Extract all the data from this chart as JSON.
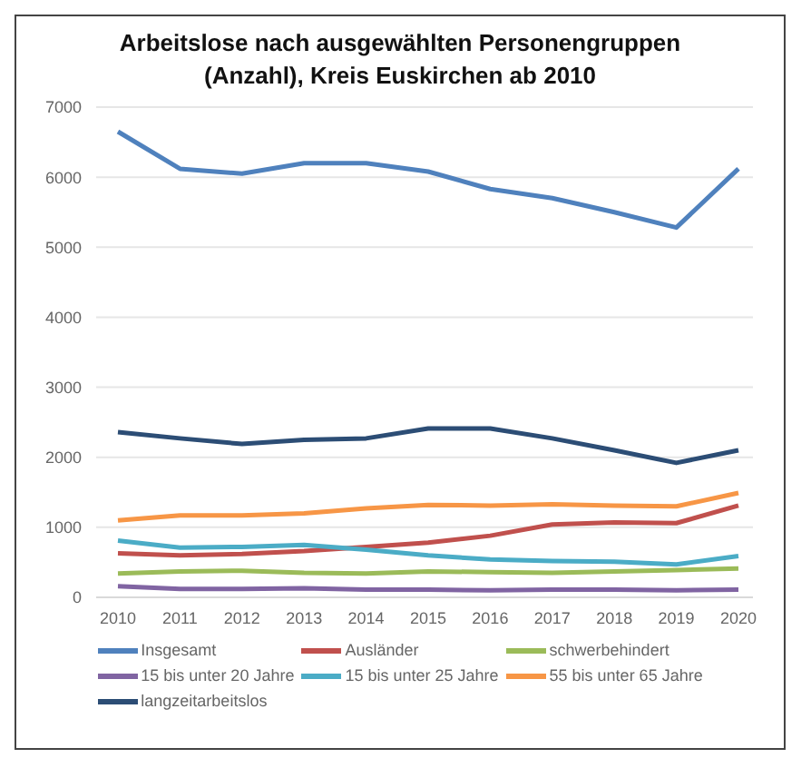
{
  "chart_data": {
    "type": "line",
    "title": "Arbeitslose nach ausgewählten Personengruppen (Anzahl), Kreis Euskirchen ab 2010",
    "categories": [
      "2010",
      "2011",
      "2012",
      "2013",
      "2014",
      "2015",
      "2016",
      "2017",
      "2018",
      "2019",
      "2020"
    ],
    "series": [
      {
        "name": "Insgesamt",
        "color": "#4f81bd",
        "values": [
          6650,
          6120,
          6050,
          6200,
          6200,
          6080,
          5830,
          5700,
          5500,
          5280,
          6120
        ]
      },
      {
        "name": "Ausländer",
        "color": "#c0504d",
        "values": [
          630,
          600,
          620,
          660,
          720,
          780,
          880,
          1040,
          1070,
          1060,
          1310
        ]
      },
      {
        "name": "schwerbehindert",
        "color": "#9bbb59",
        "values": [
          340,
          370,
          380,
          350,
          340,
          370,
          360,
          350,
          370,
          390,
          410
        ]
      },
      {
        "name": "15 bis unter 20 Jahre",
        "color": "#8064a2",
        "values": [
          160,
          120,
          120,
          130,
          110,
          110,
          100,
          110,
          110,
          100,
          110
        ]
      },
      {
        "name": "15 bis unter 25 Jahre",
        "color": "#4bacc6",
        "values": [
          810,
          710,
          720,
          750,
          680,
          600,
          540,
          520,
          510,
          470,
          590
        ]
      },
      {
        "name": "55 bis unter 65 Jahre",
        "color": "#f79646",
        "values": [
          1100,
          1170,
          1170,
          1200,
          1270,
          1320,
          1310,
          1330,
          1310,
          1300,
          1490
        ]
      },
      {
        "name": "langzeitarbeitslos",
        "color": "#2c4d75",
        "values": [
          2360,
          2270,
          2190,
          2250,
          2270,
          2410,
          2410,
          2270,
          2100,
          1920,
          2100
        ]
      }
    ],
    "ylim": [
      0,
      7000
    ],
    "yticks": [
      0,
      1000,
      2000,
      3000,
      4000,
      5000,
      6000,
      7000
    ],
    "grid": "y",
    "legend": "bottom",
    "marker": "none",
    "line_style": "solid"
  }
}
